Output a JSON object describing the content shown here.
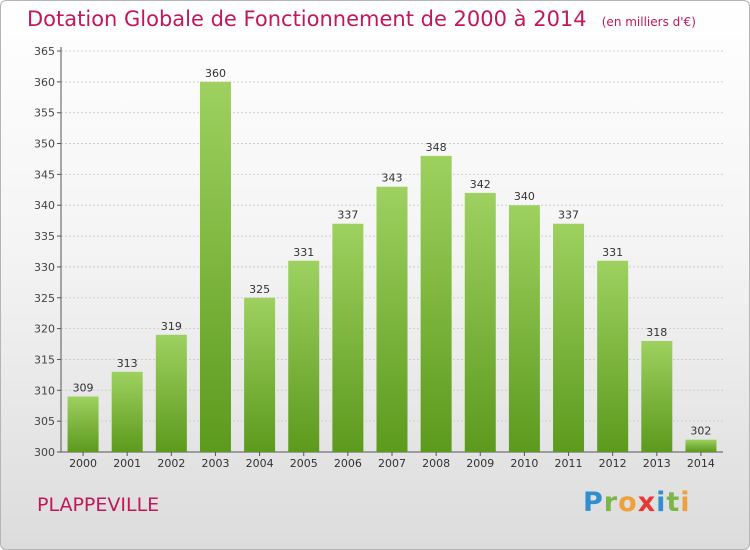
{
  "title": "Dotation Globale de Fonctionnement de 2000 à 2014",
  "unit_note": "(en milliers d'€)",
  "commune": "PLAPPEVILLE",
  "brand": {
    "letters": [
      "P",
      "r",
      "o",
      "x",
      "i",
      "t",
      "i"
    ],
    "colors": [
      "#2f8fd1",
      "#7ab648",
      "#f0a03a",
      "#e53935",
      "#2f8fd1",
      "#7ab648",
      "#f0a03a"
    ]
  },
  "colors": {
    "title": "#c2185b",
    "bar_top": "#9ed160",
    "bar_bottom": "#5c9a1d",
    "grid": "#cfcfcf",
    "axis": "#555555"
  },
  "chart_data": {
    "type": "bar",
    "categories": [
      "2000",
      "2001",
      "2002",
      "2003",
      "2004",
      "2005",
      "2006",
      "2007",
      "2008",
      "2009",
      "2010",
      "2011",
      "2012",
      "2013",
      "2014"
    ],
    "values": [
      309,
      313,
      319,
      360,
      325,
      331,
      337,
      343,
      348,
      342,
      340,
      337,
      331,
      318,
      302
    ],
    "ylim": [
      300,
      365
    ],
    "ytick_step": 5,
    "grid": true,
    "legend": "none"
  }
}
